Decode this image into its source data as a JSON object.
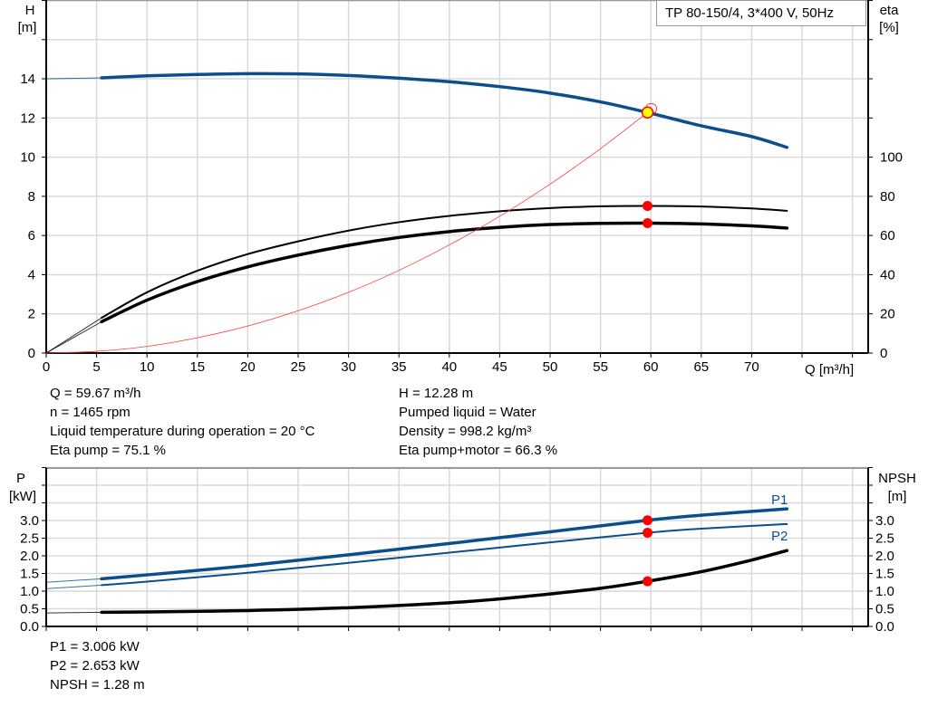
{
  "legend_box": "TP 80-150/4, 3*400 V, 50Hz",
  "colors": {
    "head": "#0a4f8c",
    "efficiency": "#000000",
    "system_curve": "#ff3b3b",
    "marker": "#ff0000",
    "duty_point_fill": "#ffff00",
    "grid": "#d9d9d9"
  },
  "chart_data": [
    {
      "type": "line",
      "xlabel": "Q [m³/h]",
      "x_ticks": [
        "0",
        "5",
        "10",
        "15",
        "20",
        "25",
        "30",
        "35",
        "40",
        "45",
        "50",
        "55",
        "60",
        "65",
        "70"
      ],
      "xlim": [
        0,
        81.6
      ],
      "ylabel_left": [
        "H",
        "[m]"
      ],
      "y_ticks_left": [
        "0",
        "2",
        "4",
        "6",
        "8",
        "10",
        "12",
        "14"
      ],
      "ylim_left": [
        0,
        18
      ],
      "ylabel_right": [
        "eta",
        "[%]"
      ],
      "y_ticks_right": [
        "0",
        "20",
        "40",
        "60",
        "80",
        "100"
      ],
      "ylim_right": [
        0,
        180
      ],
      "grid": true,
      "series": [
        {
          "key": "H",
          "axis": "left",
          "color": "#0a4f8c",
          "width": 3.5,
          "x": [
            0,
            5.5,
            10,
            15,
            20,
            25,
            30,
            35,
            40,
            45,
            50,
            55,
            59.67,
            65,
            70,
            73.5
          ],
          "y": [
            14.0,
            14.05,
            14.15,
            14.22,
            14.26,
            14.25,
            14.17,
            14.03,
            13.85,
            13.6,
            13.27,
            12.82,
            12.28,
            11.6,
            11.05,
            10.5
          ]
        },
        {
          "key": "eta_pump",
          "axis": "right",
          "color": "#000000",
          "width": 2,
          "x": [
            0,
            5.5,
            10,
            15,
            20,
            25,
            30,
            35,
            40,
            45,
            50,
            55,
            59.67,
            65,
            70,
            73.5
          ],
          "y": [
            0,
            18,
            31,
            42,
            50.5,
            57,
            62.5,
            66.8,
            70,
            72.4,
            74,
            74.9,
            75.1,
            74.8,
            73.8,
            72.6
          ]
        },
        {
          "key": "eta_pump_motor",
          "axis": "right",
          "color": "#000000",
          "width": 3.5,
          "x": [
            0,
            5.5,
            10,
            15,
            20,
            25,
            30,
            35,
            40,
            45,
            50,
            55,
            59.67,
            65,
            70,
            73.5
          ],
          "y": [
            0,
            16,
            27,
            36.5,
            44,
            50,
            55,
            59,
            62,
            64.2,
            65.6,
            66.2,
            66.3,
            65.9,
            64.9,
            63.8
          ]
        },
        {
          "key": "system_curve",
          "axis": "left",
          "color": "#ff3b3b",
          "width": 0.8,
          "formula_points_x": [
            0,
            5,
            10,
            15,
            20,
            25,
            30,
            35,
            40,
            45,
            50,
            55,
            59.67
          ],
          "formula_points_y": [
            0,
            0.09,
            0.34,
            0.78,
            1.38,
            2.16,
            3.1,
            4.22,
            5.52,
            6.98,
            8.62,
            10.43,
            12.28
          ]
        }
      ],
      "duty_point": {
        "Q": 59.67,
        "H": 12.28,
        "eta_pump": 75.1,
        "eta_pump_motor": 66.3
      }
    },
    {
      "type": "line",
      "ylabel_left": [
        "P",
        "[kW]"
      ],
      "y_ticks_left": [
        "0.0",
        "0.5",
        "1.0",
        "1.5",
        "2.0",
        "2.5",
        "3.0"
      ],
      "ylim_left": [
        0,
        4.5
      ],
      "ylabel_right": [
        "NPSH",
        "[m]"
      ],
      "y_ticks_right": [
        "0.0",
        "0.5",
        "1.0",
        "1.5",
        "2.0",
        "2.5",
        "3.0"
      ],
      "ylim_right": [
        0,
        4.5
      ],
      "grid": true,
      "series": [
        {
          "key": "P1",
          "name": "P1",
          "color": "#0a4f8c",
          "width": 3.5,
          "x": [
            0,
            5.5,
            10,
            20,
            30,
            40,
            50,
            59.67,
            65,
            73.5
          ],
          "y": [
            1.25,
            1.35,
            1.46,
            1.72,
            2.03,
            2.35,
            2.68,
            3.006,
            3.15,
            3.33
          ]
        },
        {
          "key": "P2",
          "name": "P2",
          "color": "#0a4f8c",
          "width": 2,
          "x": [
            0,
            5.5,
            10,
            20,
            30,
            40,
            50,
            59.67,
            65,
            73.5
          ],
          "y": [
            1.07,
            1.17,
            1.27,
            1.52,
            1.8,
            2.09,
            2.38,
            2.653,
            2.77,
            2.9
          ]
        },
        {
          "key": "NPSH",
          "color": "#000000",
          "width": 3.5,
          "x": [
            0,
            5.5,
            10,
            20,
            30,
            40,
            45,
            50,
            55,
            59.67,
            65,
            70,
            73.5
          ],
          "y": [
            0.38,
            0.4,
            0.41,
            0.45,
            0.53,
            0.67,
            0.78,
            0.92,
            1.08,
            1.28,
            1.55,
            1.88,
            2.15
          ]
        }
      ],
      "duty_point": {
        "P1": 3.006,
        "P2": 2.653,
        "NPSH": 1.28
      }
    }
  ],
  "info_top_left": [
    "Q = 59.67 m³/h",
    "n = 1465 rpm",
    "Liquid temperature during operation = 20 °C",
    "Eta pump = 75.1 %"
  ],
  "info_top_right": [
    "H = 12.28 m",
    "Pumped liquid = Water",
    "Density = 998.2 kg/m³",
    "Eta pump+motor = 66.3 %"
  ],
  "info_bottom": [
    "P1 = 3.006 kW",
    "P2 = 2.653 kW",
    "NPSH = 1.28 m"
  ]
}
